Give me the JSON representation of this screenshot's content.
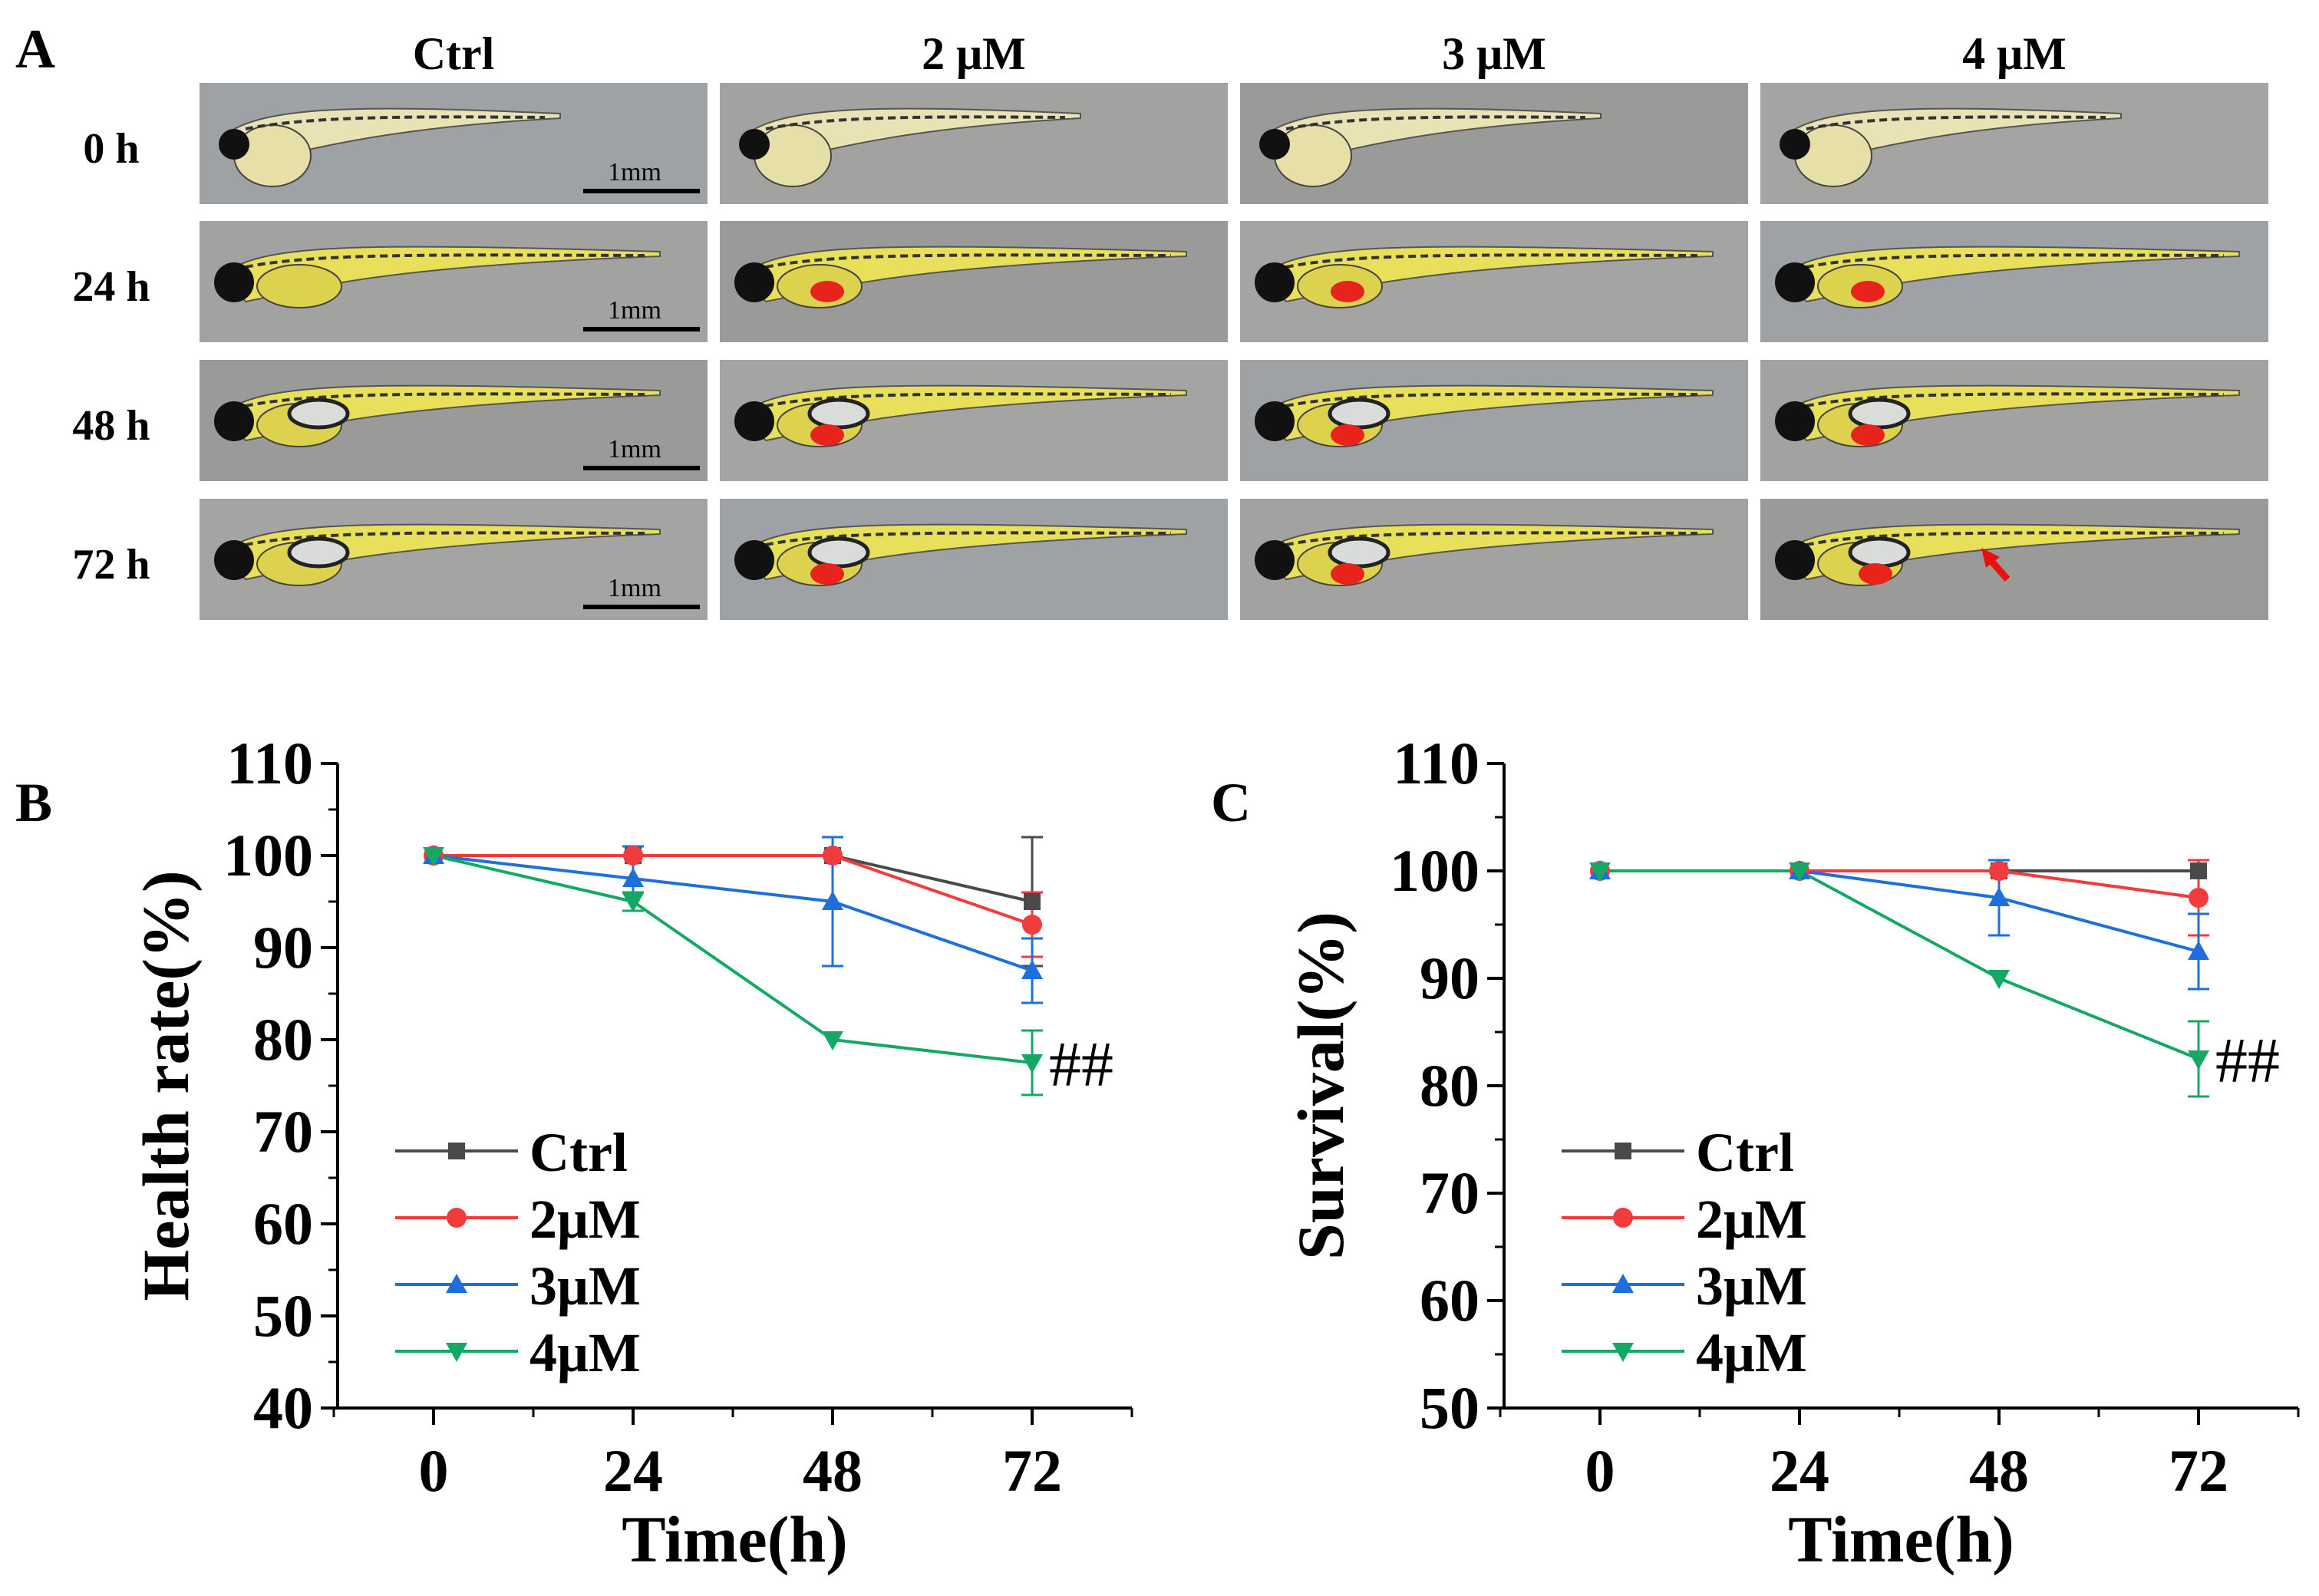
{
  "panel_a": {
    "letter": "A",
    "columns": [
      "Ctrl",
      "2 μM",
      "3 μM",
      "4 μM"
    ],
    "rows": [
      "0 h",
      "24 h",
      "48 h",
      "72 h"
    ],
    "scale_bar_label": "1mm"
  },
  "chart_data": [
    {
      "type": "line",
      "panel": "B",
      "xlabel": "Time(h)",
      "ylabel": "Health rate(%)",
      "x": [
        0,
        24,
        48,
        72
      ],
      "xticks": [
        "0",
        "24",
        "48",
        "72"
      ],
      "ylim": [
        40,
        110
      ],
      "yticks": [
        "40",
        "50",
        "60",
        "70",
        "80",
        "90",
        "100",
        "110"
      ],
      "legend_position": "bottom-left",
      "series": [
        {
          "name": "Ctrl",
          "color": "#4a4a4a",
          "marker": "square",
          "values": [
            100,
            100,
            100,
            95
          ],
          "errors": [
            0,
            0,
            0,
            7
          ]
        },
        {
          "name": "2μM",
          "color": "#f03c3c",
          "marker": "circle",
          "values": [
            100,
            100,
            100,
            92.5
          ],
          "errors": [
            0,
            0,
            0,
            3.5
          ]
        },
        {
          "name": "3μM",
          "color": "#1e6fdc",
          "marker": "triangle-up",
          "values": [
            100,
            97.5,
            95,
            87.5
          ],
          "errors": [
            0,
            3.5,
            7,
            3.5
          ]
        },
        {
          "name": "4μM",
          "color": "#14a864",
          "marker": "triangle-down",
          "values": [
            100,
            95,
            80,
            77.5
          ],
          "errors": [
            0,
            1,
            0,
            3.5
          ]
        }
      ],
      "annotation": "##"
    },
    {
      "type": "line",
      "panel": "C",
      "xlabel": "Time(h)",
      "ylabel": "Survival(%)",
      "x": [
        0,
        24,
        48,
        72
      ],
      "xticks": [
        "0",
        "24",
        "48",
        "72"
      ],
      "ylim": [
        50,
        110
      ],
      "yticks": [
        "50",
        "60",
        "70",
        "80",
        "90",
        "100",
        "110"
      ],
      "legend_position": "bottom-left",
      "series": [
        {
          "name": "Ctrl",
          "color": "#4a4a4a",
          "marker": "square",
          "values": [
            100,
            100,
            100,
            100
          ],
          "errors": [
            0,
            0,
            0,
            0
          ]
        },
        {
          "name": "2μM",
          "color": "#f03c3c",
          "marker": "circle",
          "values": [
            100,
            100,
            100,
            97.5
          ],
          "errors": [
            0,
            0,
            0,
            3.5
          ]
        },
        {
          "name": "3μM",
          "color": "#1e6fdc",
          "marker": "triangle-up",
          "values": [
            100,
            100,
            97.5,
            92.5
          ],
          "errors": [
            0,
            0,
            3.5,
            3.5
          ]
        },
        {
          "name": "4μM",
          "color": "#14a864",
          "marker": "triangle-down",
          "values": [
            100,
            100,
            90,
            82.5
          ],
          "errors": [
            0,
            0,
            0,
            3.5
          ]
        }
      ],
      "annotation": "##"
    }
  ]
}
